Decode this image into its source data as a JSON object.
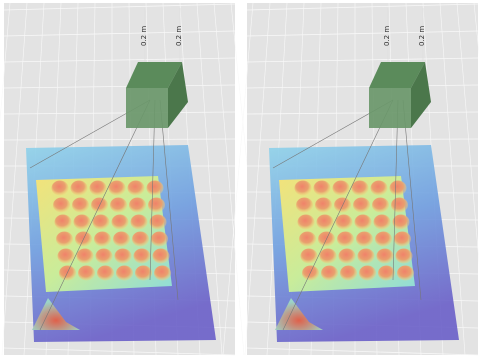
{
  "panels": [
    {
      "labels": [
        "0.2 m",
        "0.2 m"
      ]
    },
    {
      "labels": [
        "0.2 m",
        "0.2 m"
      ]
    }
  ]
}
